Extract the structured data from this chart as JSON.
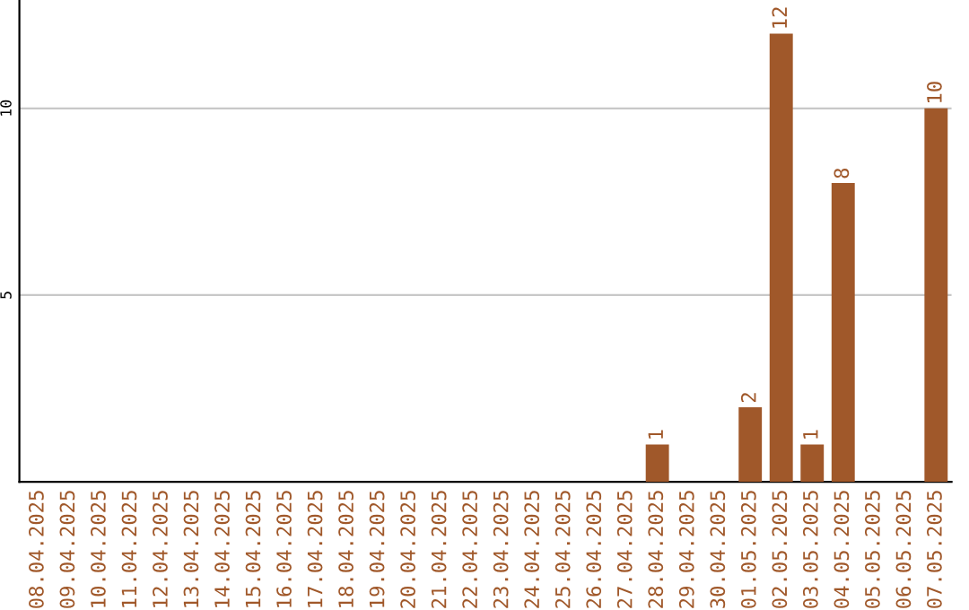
{
  "chart_data": {
    "type": "bar",
    "categories": [
      "08.04.2025",
      "09.04.2025",
      "10.04.2025",
      "11.04.2025",
      "12.04.2025",
      "13.04.2025",
      "14.04.2025",
      "15.04.2025",
      "16.04.2025",
      "17.04.2025",
      "18.04.2025",
      "19.04.2025",
      "20.04.2025",
      "21.04.2025",
      "22.04.2025",
      "23.04.2025",
      "24.04.2025",
      "25.04.2025",
      "26.04.2025",
      "27.04.2025",
      "28.04.2025",
      "29.04.2025",
      "30.04.2025",
      "01.05.2025",
      "02.05.2025",
      "03.05.2025",
      "04.05.2025",
      "05.05.2025",
      "06.05.2025",
      "07.05.2025"
    ],
    "values": [
      0,
      0,
      0,
      0,
      0,
      0,
      0,
      0,
      0,
      0,
      0,
      0,
      0,
      0,
      0,
      0,
      0,
      0,
      0,
      0,
      1,
      0,
      0,
      2,
      12,
      1,
      8,
      0,
      0,
      10
    ],
    "value_labels": [
      null,
      null,
      null,
      null,
      null,
      null,
      null,
      null,
      null,
      null,
      null,
      null,
      null,
      null,
      null,
      null,
      null,
      null,
      null,
      null,
      "1",
      null,
      null,
      "2",
      "12",
      "1",
      "8",
      null,
      null,
      "10"
    ],
    "color": "#a0582a",
    "ylim": [
      0,
      12.9
    ],
    "yticks": [
      5,
      10
    ],
    "grid": "y"
  }
}
